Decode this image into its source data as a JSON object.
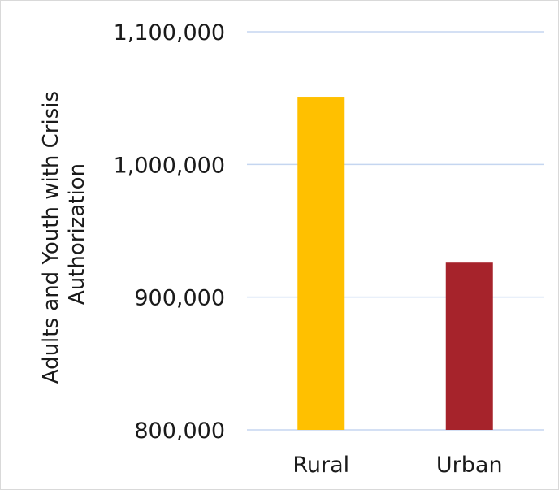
{
  "chart_data": {
    "type": "bar",
    "categories": [
      "Rural",
      "Urban"
    ],
    "values": [
      1051000,
      926000
    ],
    "title": "",
    "xlabel": "",
    "ylabel_lines": [
      "Adults and Youth with Crisis",
      "Authorization"
    ],
    "ylim": [
      800000,
      1100000
    ],
    "yticks": [
      800000,
      900000,
      1000000,
      1100000
    ],
    "ytick_labels": [
      "800,000",
      "900,000",
      "1,000,000",
      "1,100,000"
    ],
    "grid": true,
    "legend": "none",
    "colors": [
      "#FFC000",
      "#A6232B"
    ]
  }
}
